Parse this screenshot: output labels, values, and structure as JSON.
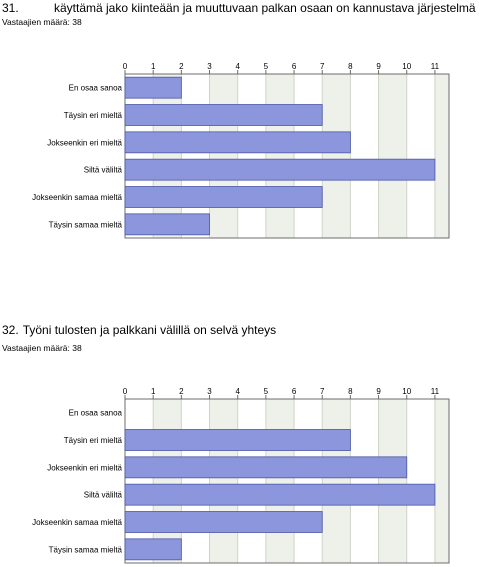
{
  "chart_data": [
    {
      "type": "bar",
      "orientation": "horizontal",
      "question_number": "31.",
      "title": "käyttämä jako kiinteään ja muuttuvaan palkan osaan on kannustava järjestelmä",
      "respondents_label": "Vastaajien määrä: 38",
      "categories": [
        "En osaa sanoa",
        "Täysin eri mieltä",
        "Jokseenkin eri mieltä",
        "Siltä väliltä",
        "Jokseenkin samaa mieltä",
        "Täysin samaa mieltä"
      ],
      "values": [
        2,
        7,
        8,
        11,
        7,
        3
      ],
      "xlim": [
        0,
        11.5
      ],
      "ticks": [
        0,
        1,
        2,
        3,
        4,
        5,
        6,
        7,
        8,
        9,
        10,
        11
      ],
      "tick_labels": [
        "0",
        "1",
        "2",
        "3",
        "4",
        "5",
        "6",
        "7",
        "8",
        "9",
        "10",
        "11"
      ],
      "axis_position": "top",
      "grid": true,
      "colors": {
        "bar": "#8b96dc",
        "bar_edge": "#4c57a8",
        "band_a": "#ffffff",
        "band_b": "#eef1ea",
        "frame": "#6c6c6c"
      }
    },
    {
      "type": "bar",
      "orientation": "horizontal",
      "question_number": "32.",
      "title": "Työni tulosten ja palkkani välillä on selvä yhteys",
      "respondents_label": "Vastaajien määrä: 38",
      "categories": [
        "En osaa sanoa",
        "Täysin eri mieltä",
        "Jokseenkin eri mieltä",
        "Siltä väliltä",
        "Jokseenkin samaa mieltä",
        "Täysin samaa mieltä"
      ],
      "values": [
        0,
        8,
        10,
        11,
        7,
        2
      ],
      "xlim": [
        0,
        11.5
      ],
      "ticks": [
        0,
        1,
        2,
        3,
        4,
        5,
        6,
        7,
        8,
        9,
        10,
        11
      ],
      "tick_labels": [
        "0",
        "1",
        "2",
        "3",
        "4",
        "5",
        "6",
        "7",
        "8",
        "9",
        "10",
        "11"
      ],
      "axis_position": "top",
      "grid": true,
      "colors": {
        "bar": "#8b96dc",
        "bar_edge": "#4c57a8",
        "band_a": "#ffffff",
        "band_b": "#eef1ea",
        "frame": "#6c6c6c"
      }
    }
  ]
}
